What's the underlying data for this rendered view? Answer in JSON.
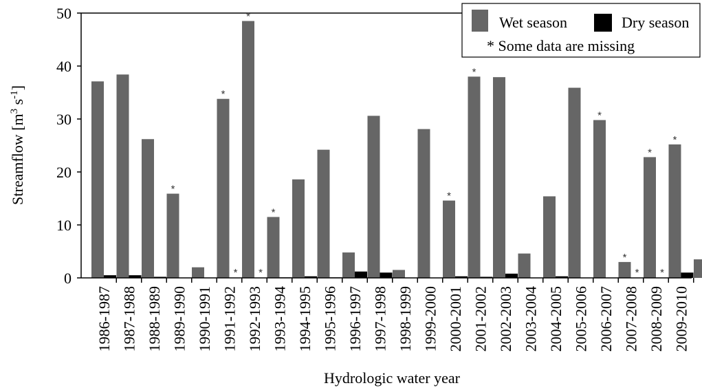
{
  "chart_data": {
    "type": "bar",
    "title": "",
    "xlabel": "Hydrologic water year",
    "ylabel": "Streamflow [m",
    "ylabel_sup": "3",
    "ylabel_mid": " s",
    "ylabel_sup2": "-1",
    "ylabel_end": "]",
    "ylim": [
      0,
      50
    ],
    "yticks": [
      "0",
      "10",
      "20",
      "30",
      "40",
      "50"
    ],
    "categories": [
      "1986-1987",
      "1987-1988",
      "1988-1989",
      "1989-1990",
      "1990-1991",
      "1991-1992",
      "1992-1993",
      "1993-1994",
      "1994-1995",
      "1995-1996",
      "1996-1997",
      "1997-1998",
      "1998-1999",
      "1999-2000",
      "2000-2001",
      "2001-2002",
      "2002-2003",
      "2003-2004",
      "2004-2005",
      "2005-2006",
      "2006-2007",
      "2007-2008",
      "2008-2009",
      "2009-2010",
      ""
    ],
    "series": [
      {
        "name": "Wet season",
        "color": "#666666",
        "values": [
          37.1,
          38.4,
          26.2,
          15.9,
          2.0,
          33.8,
          48.5,
          11.5,
          18.6,
          24.2,
          4.8,
          30.6,
          1.5,
          28.1,
          14.6,
          38.0,
          37.9,
          4.6,
          15.4,
          35.9,
          29.8,
          3.0,
          22.8,
          25.2,
          3.5
        ],
        "missing": [
          false,
          false,
          false,
          true,
          false,
          true,
          true,
          true,
          false,
          false,
          false,
          false,
          false,
          false,
          true,
          true,
          false,
          false,
          false,
          false,
          true,
          true,
          true,
          true,
          false
        ]
      },
      {
        "name": "Dry season",
        "color": "#000000",
        "values": [
          0.5,
          0.5,
          0.2,
          0.0,
          0.0,
          0.0,
          0.0,
          0.1,
          0.3,
          0.1,
          1.2,
          1.0,
          0.0,
          0.0,
          0.3,
          0.2,
          0.8,
          0.0,
          0.3,
          0.0,
          0.0,
          0.0,
          0.0,
          1.0,
          0.4
        ],
        "missing": [
          false,
          false,
          false,
          false,
          false,
          true,
          true,
          false,
          false,
          false,
          false,
          false,
          false,
          false,
          false,
          false,
          false,
          false,
          false,
          false,
          false,
          true,
          true,
          false,
          true
        ]
      }
    ],
    "missing_marker": "*",
    "legend": {
      "position": "top-right",
      "items": [
        "Wet season",
        "Dry season"
      ],
      "note": "* Some data are missing"
    },
    "grid": false
  }
}
